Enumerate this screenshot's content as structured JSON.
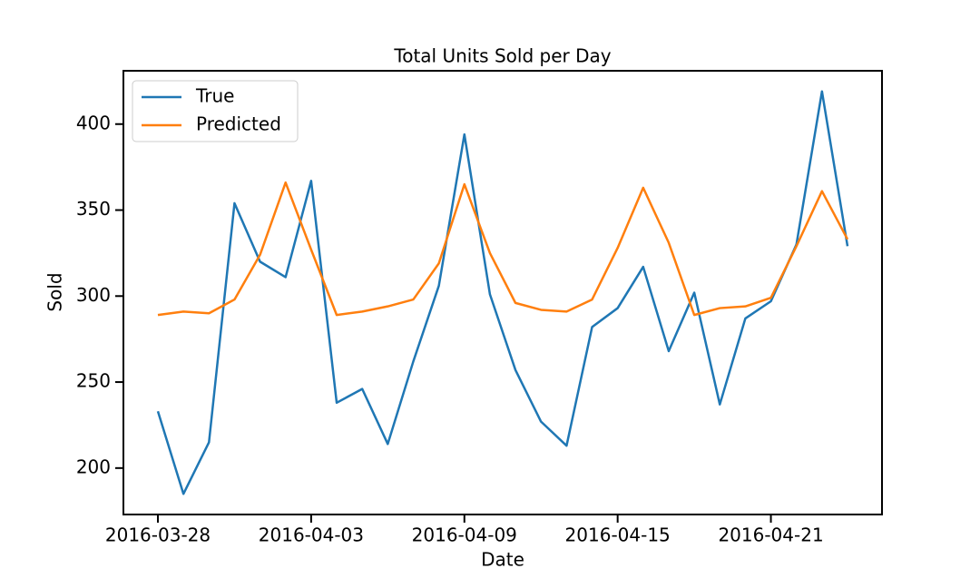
{
  "chart_data": {
    "type": "line",
    "title": "Total Units Sold per Day",
    "x_label": "Date",
    "y_label": "Sold",
    "x": [
      "2016-03-28",
      "2016-03-29",
      "2016-03-30",
      "2016-03-31",
      "2016-04-01",
      "2016-04-02",
      "2016-04-03",
      "2016-04-04",
      "2016-04-05",
      "2016-04-06",
      "2016-04-07",
      "2016-04-08",
      "2016-04-09",
      "2016-04-10",
      "2016-04-11",
      "2016-04-12",
      "2016-04-13",
      "2016-04-14",
      "2016-04-15",
      "2016-04-16",
      "2016-04-17",
      "2016-04-18",
      "2016-04-19",
      "2016-04-20",
      "2016-04-21",
      "2016-04-22",
      "2016-04-23",
      "2016-04-24"
    ],
    "series": [
      {
        "name": "True",
        "color": "#1f77b4",
        "values": [
          233,
          185,
          215,
          354,
          320,
          311,
          367,
          238,
          246,
          214,
          262,
          306,
          394,
          301,
          257,
          227,
          213,
          282,
          293,
          317,
          268,
          302,
          237,
          287,
          297,
          330,
          419,
          329
        ]
      },
      {
        "name": "Predicted",
        "color": "#ff7f0e",
        "values": [
          289,
          291,
          290,
          298,
          324,
          366,
          327,
          289,
          291,
          294,
          298,
          319,
          365,
          325,
          296,
          292,
          291,
          298,
          328,
          363,
          331,
          289,
          293,
          294,
          299,
          329,
          361,
          333
        ]
      }
    ],
    "xlim": [
      "2016-03-26T15:36",
      "2016-04-25T08:24"
    ],
    "xticks": [
      "2016-03-28",
      "2016-04-03",
      "2016-04-09",
      "2016-04-15",
      "2016-04-21"
    ],
    "ylim": [
      173,
      431
    ],
    "yticks": [
      200,
      250,
      300,
      350,
      400
    ],
    "grid": false,
    "legend": "upper left"
  }
}
